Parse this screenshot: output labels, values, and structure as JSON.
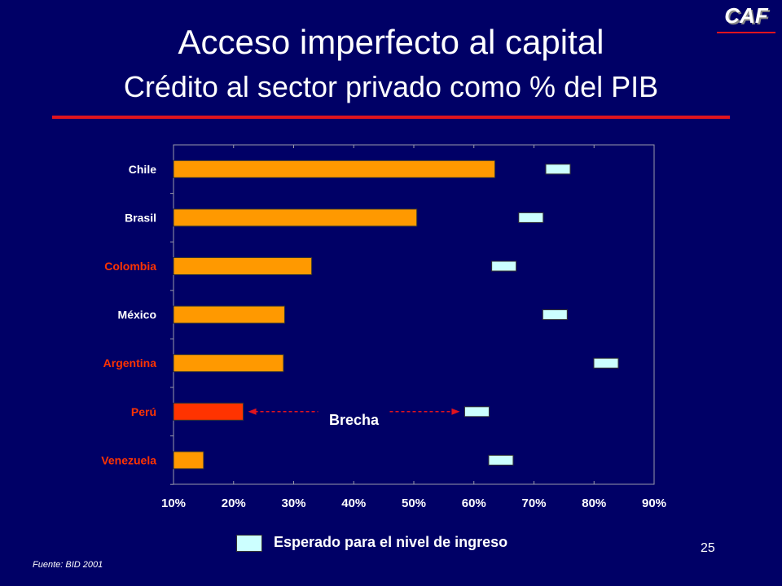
{
  "slide": {
    "title_line1": "Acceso imperfecto al capital",
    "title_line2": "Crédito al sector privado como % del PIB",
    "logo_text": "CAF",
    "page_number": "25",
    "source": "Fuente: BID 2001",
    "legend_label": "Esperado para el nivel de ingreso"
  },
  "colors": {
    "background": "#000066",
    "bar": "#ff9900",
    "bar_highlight": "#ff3300",
    "expected_marker": "#ccffff",
    "label_default": "#ffffff",
    "label_highlight": "#ff3300",
    "accent_red": "#e0141e"
  },
  "chart_data": {
    "type": "bar",
    "orientation": "horizontal",
    "categories": [
      "Chile",
      "Brasil",
      "Colombia",
      "México",
      "Argentina",
      "Perú",
      "Venezuela"
    ],
    "label_highlight": [
      false,
      false,
      true,
      false,
      true,
      true,
      true
    ],
    "series": [
      {
        "name": "Crédito al sector privado",
        "values": [
          63.5,
          50.5,
          33.0,
          28.5,
          28.3,
          21.6,
          15.0
        ],
        "bar_highlight": [
          false,
          false,
          false,
          false,
          false,
          true,
          false
        ]
      },
      {
        "name": "Esperado para el nivel de ingreso",
        "values": [
          74.0,
          69.5,
          65.0,
          73.5,
          82.0,
          60.5,
          64.5
        ]
      }
    ],
    "xlim": [
      10,
      90
    ],
    "xticks": [
      "10%",
      "20%",
      "30%",
      "40%",
      "50%",
      "60%",
      "70%",
      "80%",
      "90%"
    ],
    "xtick_values": [
      10,
      20,
      30,
      40,
      50,
      60,
      70,
      80,
      90
    ],
    "annotation": {
      "text": "Brecha",
      "category": "Perú"
    },
    "grid": false
  }
}
